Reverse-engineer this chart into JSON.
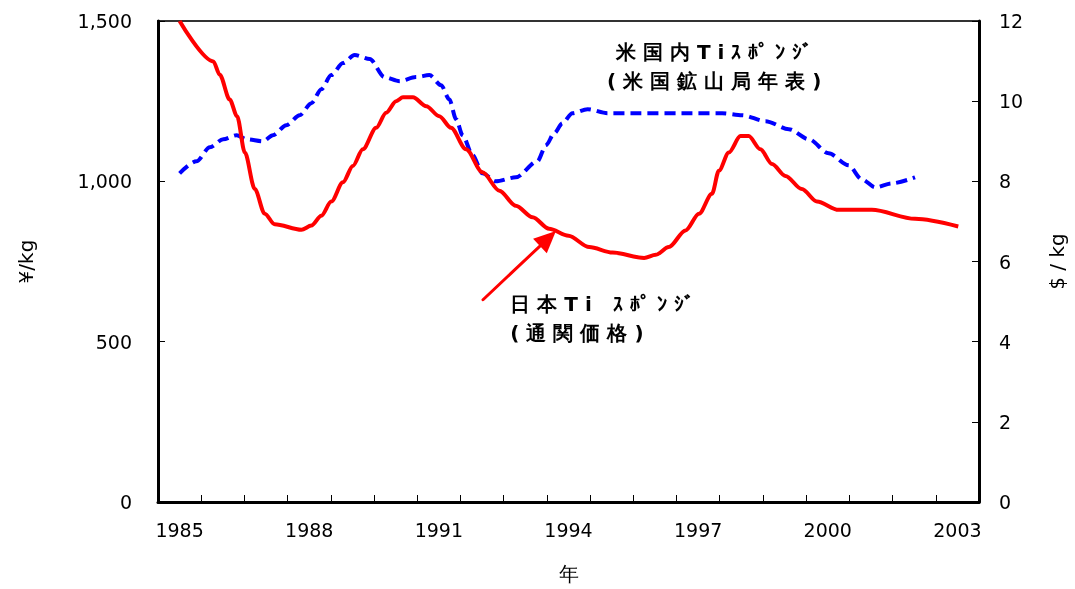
{
  "chart_data": {
    "type": "line",
    "xlabel": "年",
    "ylabel": "¥/kg",
    "y2label": "$ / kg",
    "xlim": [
      1984.5,
      2003.5
    ],
    "xticks": [
      1985,
      {
        "value": 1985.5,
        "label": null
      },
      {
        "value": 1986.5,
        "label": null
      },
      {
        "value": 1987.5,
        "label": null
      },
      1988,
      {
        "value": 1988.5,
        "label": null
      },
      {
        "value": 1989.5,
        "label": null
      },
      {
        "value": 1990.5,
        "label": null
      },
      1991,
      {
        "value": 1991.5,
        "label": null
      },
      {
        "value": 1992.5,
        "label": null
      },
      {
        "value": 1993.5,
        "label": null
      },
      1994,
      {
        "value": 1994.5,
        "label": null
      },
      {
        "value": 1995.5,
        "label": null
      },
      {
        "value": 1996.5,
        "label": null
      },
      1997,
      {
        "value": 1997.5,
        "label": null
      },
      {
        "value": 1998.5,
        "label": null
      },
      {
        "value": 1999.5,
        "label": null
      },
      2000,
      {
        "value": 2000.5,
        "label": null
      },
      {
        "value": 2001.5,
        "label": null
      },
      {
        "value": 2002.5,
        "label": null
      },
      2003
    ],
    "ylim": [
      0,
      1500
    ],
    "yticks": [
      0,
      500,
      {
        "value": 1000,
        "label": "1,000"
      },
      {
        "value": 1500,
        "label": "1,500"
      }
    ],
    "y2lim": [
      0,
      12
    ],
    "y2ticks": [
      0,
      2,
      4,
      6,
      8,
      10,
      12
    ],
    "series": [
      {
        "name": "米国内Tiｽﾎﾟﾝｼﾞ\n(米国鉱山局年表)",
        "color": "#0000ff",
        "axis": "y2",
        "line_style": "dashed",
        "x": [
          1985.0,
          1985.39,
          1985.7,
          1986.01,
          1986.32,
          1986.55,
          1986.93,
          1987.16,
          1987.47,
          1987.78,
          1988.05,
          1988.28,
          1988.51,
          1988.78,
          1989.05,
          1989.4,
          1989.74,
          1990.09,
          1990.47,
          1990.78,
          1991.05,
          1991.24,
          1991.4,
          1991.55,
          1991.78,
          1992.01,
          1992.32,
          1992.78,
          1993.28,
          1993.48,
          1993.67,
          1993.86,
          1994.09,
          1994.44,
          1994.9,
          1995.63,
          1996.63,
          1997.56,
          1998.02,
          1998.56,
          1999.1,
          1999.56,
          2000.02,
          2000.48,
          2000.79,
          2001.1,
          2001.48,
          2002.02
        ],
        "values": [
          8.2,
          8.5,
          8.85,
          9.05,
          9.15,
          9.05,
          9.0,
          9.15,
          9.4,
          9.65,
          9.95,
          10.3,
          10.65,
          10.95,
          11.15,
          11.05,
          10.6,
          10.5,
          10.6,
          10.65,
          10.4,
          10.05,
          9.55,
          9.15,
          8.65,
          8.2,
          8.0,
          8.1,
          8.5,
          8.9,
          9.2,
          9.45,
          9.7,
          9.8,
          9.7,
          9.7,
          9.7,
          9.7,
          9.65,
          9.5,
          9.3,
          9.05,
          8.7,
          8.4,
          8.05,
          7.85,
          7.95,
          8.1
        ]
      },
      {
        "name": "日本Ti ｽﾎﾟﾝｼﾞ\n(通関価格)",
        "color": "#ff0000",
        "line_style": "solid",
        "x": [
          1985.0,
          1985.78,
          1985.93,
          1986.16,
          1986.33,
          1986.51,
          1986.74,
          1986.97,
          1987.2,
          1987.82,
          1988.05,
          1988.28,
          1988.51,
          1988.78,
          1989.01,
          1989.24,
          1989.55,
          1989.78,
          1990.01,
          1990.17,
          1990.4,
          1990.71,
          1991.01,
          1991.28,
          1991.63,
          1992.01,
          1992.4,
          1992.78,
          1993.17,
          1993.55,
          1994.0,
          1994.48,
          1995.02,
          1995.75,
          1996.02,
          1996.32,
          1996.71,
          1997.02,
          1997.32,
          1997.48,
          1997.71,
          1997.98,
          1998.17,
          1998.44,
          1998.71,
          1999.02,
          1999.4,
          1999.75,
          2000.25,
          2001.02,
          2002.02,
          2003.02
        ],
        "values": [
          1500,
          1374,
          1332,
          1255,
          1203,
          1090,
          976,
          899,
          866,
          849,
          862,
          893,
          937,
          997,
          1048,
          1100,
          1167,
          1214,
          1250,
          1262,
          1262,
          1234,
          1203,
          1167,
          1100,
          1028,
          971,
          924,
          888,
          852,
          830,
          795,
          778,
          761,
          771,
          795,
          847,
          899,
          961,
          1033,
          1090,
          1141,
          1141,
          1100,
          1054,
          1017,
          976,
          937,
          911,
          911,
          883,
          859
        ]
      }
    ]
  }
}
